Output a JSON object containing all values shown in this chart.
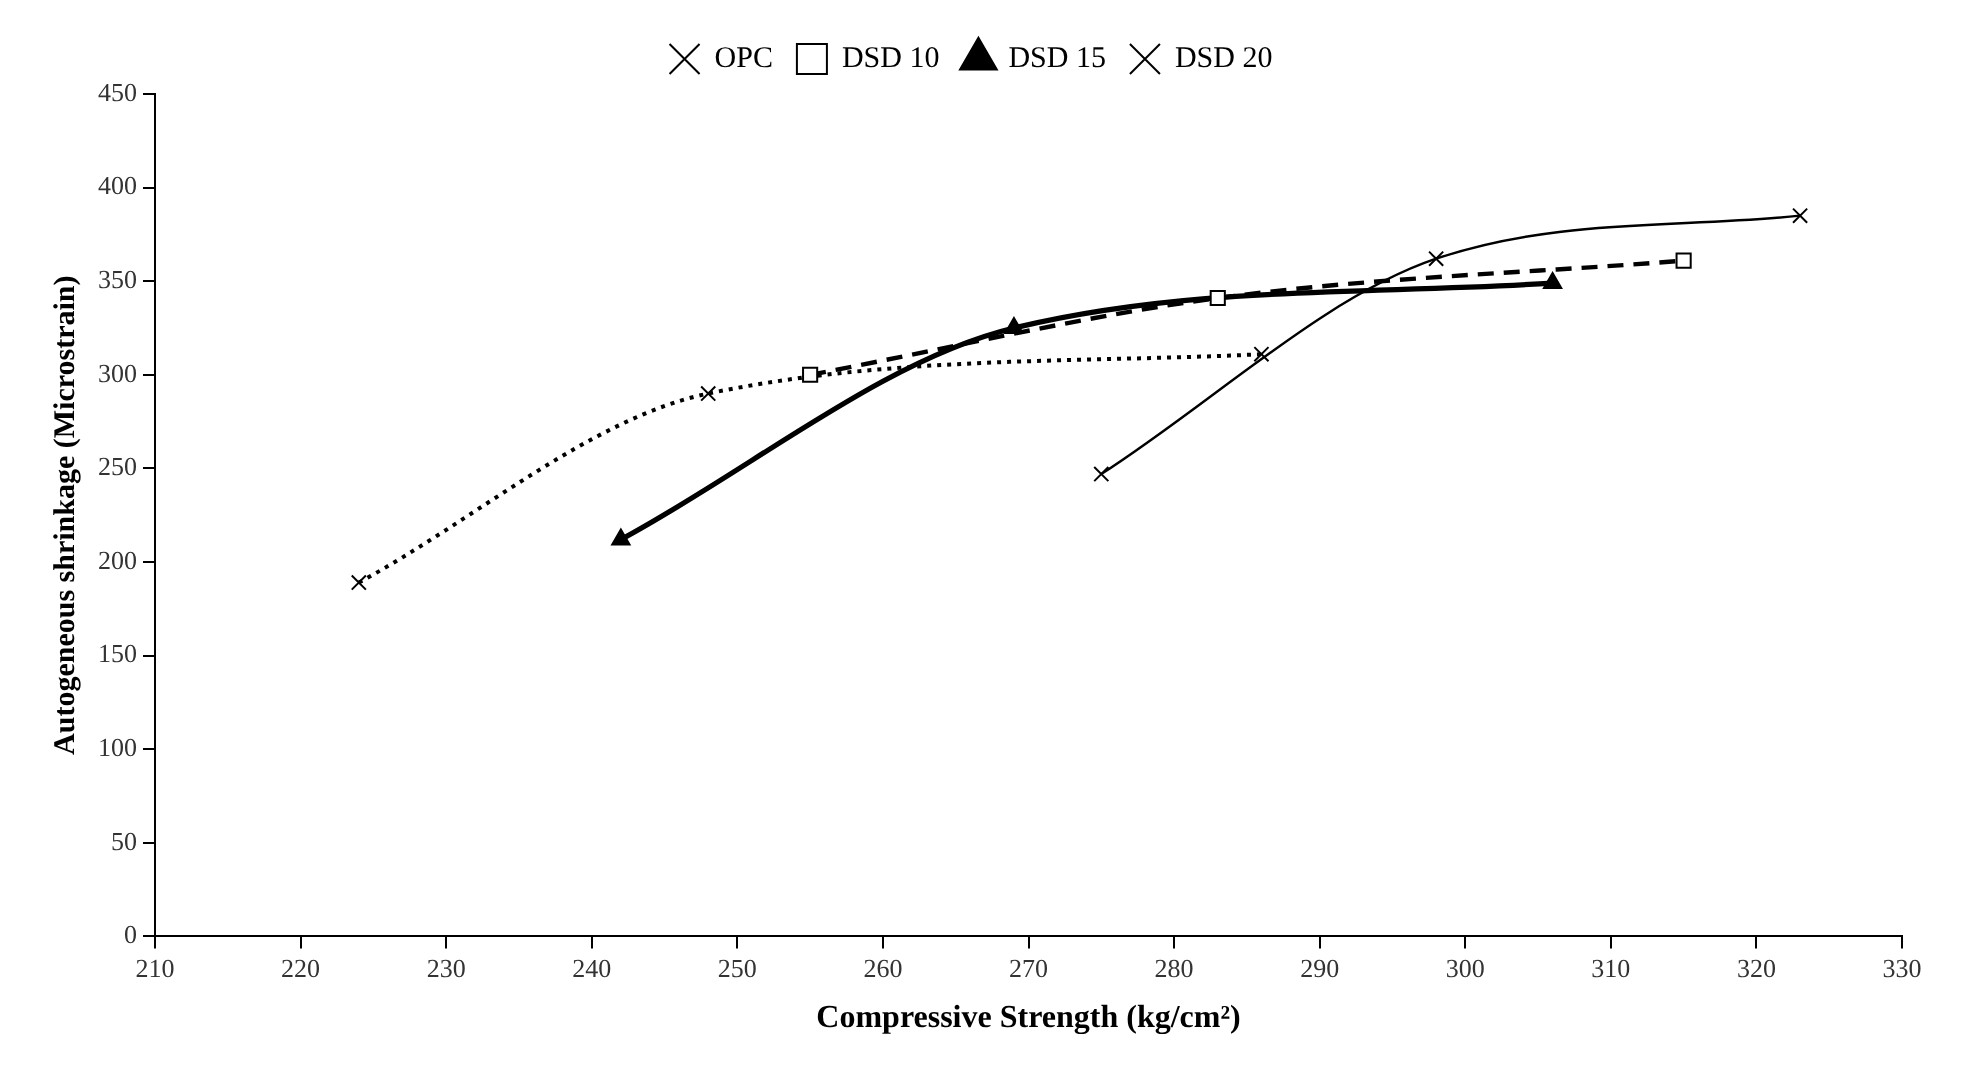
{
  "chart_data": {
    "type": "line",
    "xlabel": "Compressive Strength (kg/cm²)",
    "ylabel": "Autogeneous shrinkage (Microstrain)",
    "xlim": [
      210,
      330
    ],
    "xticks": [
      210,
      220,
      230,
      240,
      250,
      260,
      270,
      280,
      290,
      300,
      310,
      320,
      330
    ],
    "ylim": [
      0,
      450
    ],
    "yticks": [
      0,
      50,
      100,
      150,
      200,
      250,
      300,
      350,
      400,
      450
    ],
    "grid": false,
    "legend": "top",
    "series": [
      {
        "name": "OPC",
        "color": "#000000",
        "marker": "cross",
        "line_style": "solid",
        "x": [
          275,
          298,
          323
        ],
        "values": [
          247,
          362,
          385
        ]
      },
      {
        "name": "DSD 10",
        "color": "#000000",
        "marker": "square",
        "line_style": "dashed",
        "x": [
          255,
          283,
          315
        ],
        "values": [
          300,
          341,
          361
        ]
      },
      {
        "name": "DSD 15",
        "color": "#000000",
        "marker": "triangle",
        "line_style": "solid",
        "x": [
          242,
          269,
          306
        ],
        "values": [
          212,
          325,
          349
        ]
      },
      {
        "name": "DSD 20",
        "color": "#000000",
        "marker": "cross",
        "line_style": "dotted",
        "x": [
          224,
          248,
          286
        ],
        "values": [
          189,
          290,
          311
        ]
      }
    ]
  }
}
